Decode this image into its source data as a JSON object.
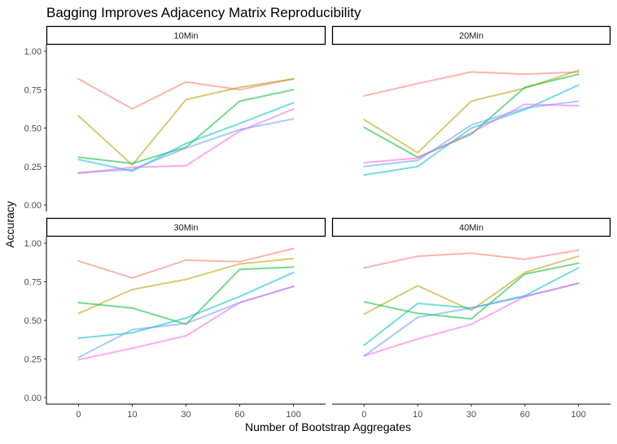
{
  "chart_data": {
    "type": "line",
    "title": "Bagging Improves Adjacency Matrix Reproducibility",
    "xlabel": "Number of Bootstrap Aggregates",
    "ylabel": "Accuracy",
    "categories": [
      "0",
      "10",
      "30",
      "60",
      "100"
    ],
    "ylim": [
      0,
      1
    ],
    "yticks": [
      "0.00",
      "0.25",
      "0.50",
      "0.75",
      "1.00"
    ],
    "grid": false,
    "legend": "none",
    "series_colors": [
      "#F8766D",
      "#B79F00",
      "#00BA38",
      "#00BFC4",
      "#619CFF",
      "#F564E3"
    ],
    "facets": [
      {
        "label": "10Min",
        "series": [
          {
            "values": [
              0.82,
              0.625,
              0.8,
              0.75,
              0.82
            ]
          },
          {
            "values": [
              0.58,
              0.26,
              0.685,
              0.765,
              0.82
            ]
          },
          {
            "values": [
              0.31,
              0.27,
              0.375,
              0.675,
              0.75
            ]
          },
          {
            "values": [
              0.295,
              0.22,
              0.4,
              0.53,
              0.665
            ]
          },
          {
            "values": [
              0.21,
              0.23,
              0.37,
              0.49,
              0.56
            ]
          },
          {
            "values": [
              0.205,
              0.245,
              0.255,
              0.48,
              0.625
            ]
          }
        ]
      },
      {
        "label": "20Min",
        "series": [
          {
            "values": [
              0.71,
              0.79,
              0.865,
              0.85,
              0.865
            ]
          },
          {
            "values": [
              0.555,
              0.34,
              0.675,
              0.76,
              0.875
            ]
          },
          {
            "values": [
              0.505,
              0.31,
              0.46,
              0.765,
              0.85
            ]
          },
          {
            "values": [
              0.195,
              0.25,
              0.5,
              0.62,
              0.78
            ]
          },
          {
            "values": [
              0.25,
              0.29,
              0.52,
              0.63,
              0.675
            ]
          },
          {
            "values": [
              0.275,
              0.305,
              0.47,
              0.655,
              0.645
            ]
          }
        ]
      },
      {
        "label": "30Min",
        "series": [
          {
            "values": [
              0.885,
              0.775,
              0.89,
              0.88,
              0.965
            ]
          },
          {
            "values": [
              0.545,
              0.7,
              0.765,
              0.865,
              0.9
            ]
          },
          {
            "values": [
              0.615,
              0.58,
              0.475,
              0.83,
              0.845
            ]
          },
          {
            "values": [
              0.385,
              0.42,
              0.515,
              0.655,
              0.81
            ]
          },
          {
            "values": [
              0.26,
              0.44,
              0.48,
              0.615,
              0.72
            ]
          },
          {
            "values": [
              0.245,
              0.32,
              0.4,
              0.615,
              0.72
            ]
          }
        ]
      },
      {
        "label": "40Min",
        "series": [
          {
            "values": [
              0.84,
              0.915,
              0.935,
              0.895,
              0.955
            ]
          },
          {
            "values": [
              0.54,
              0.725,
              0.565,
              0.81,
              0.915
            ]
          },
          {
            "values": [
              0.62,
              0.545,
              0.51,
              0.8,
              0.87
            ]
          },
          {
            "values": [
              0.34,
              0.61,
              0.58,
              0.66,
              0.84
            ]
          },
          {
            "values": [
              0.27,
              0.52,
              0.58,
              0.655,
              0.74
            ]
          },
          {
            "values": [
              0.27,
              0.38,
              0.475,
              0.655,
              0.74
            ]
          }
        ]
      }
    ]
  }
}
